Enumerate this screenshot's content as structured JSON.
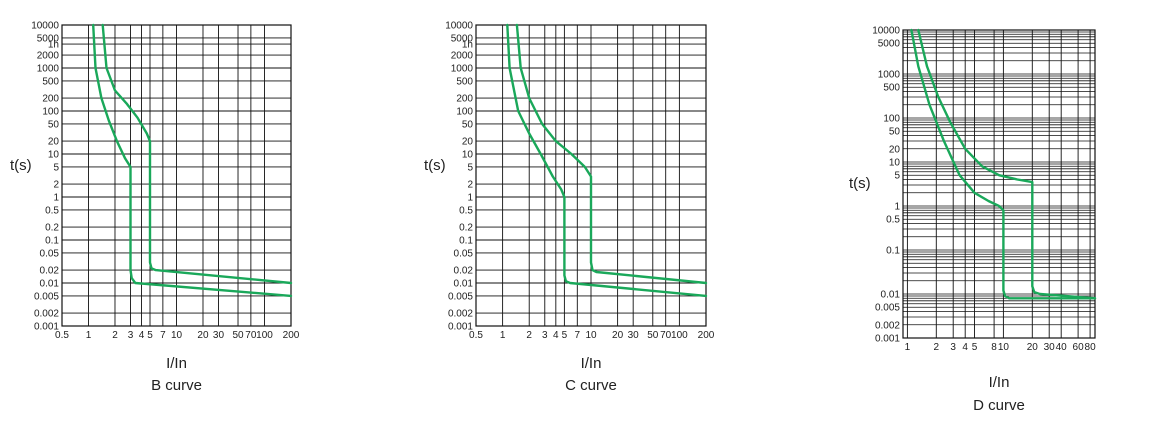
{
  "curve_color": "#1aa85a",
  "chart_data": [
    {
      "type": "line",
      "title": "B curve",
      "xlabel": "I/In",
      "ylabel": "t(s)",
      "x_scale": "log",
      "y_scale": "log",
      "xlim": [
        0.5,
        200
      ],
      "ylim": [
        0.001,
        10000
      ],
      "x_ticks": [
        0.5,
        1,
        2,
        3,
        4,
        5,
        7,
        10,
        20,
        30,
        50,
        70,
        100,
        200
      ],
      "x_tick_labels": [
        "0.5",
        "1",
        "2",
        "3",
        "4",
        "5",
        "7",
        "10",
        "20",
        "30",
        "50",
        "70",
        "100",
        "200"
      ],
      "y_ticks": [
        10000,
        5000,
        3600,
        2000,
        1000,
        500,
        200,
        100,
        50,
        20,
        10,
        5,
        2,
        1,
        0.5,
        0.2,
        0.1,
        0.05,
        0.02,
        0.01,
        0.005,
        0.002,
        0.001
      ],
      "y_tick_labels": [
        "10000",
        "5000",
        "1h",
        "2000",
        "1000",
        "500",
        "200",
        "100",
        "50",
        "20",
        "10",
        "5",
        "2",
        "1",
        "0.5",
        "0.2",
        "0.1",
        "0.05",
        "0.02",
        "0.01",
        "0.005",
        "0.002",
        "0.001"
      ],
      "grid": true,
      "series": [
        {
          "x": [
            1.13,
            1.2,
            1.4,
            1.7,
            2.1,
            2.6,
            3.0,
            3.0,
            3.1,
            3.4,
            200
          ],
          "y": [
            10000,
            1000,
            200,
            60,
            20,
            8,
            5,
            0.02,
            0.013,
            0.01,
            0.005
          ]
        },
        {
          "x": [
            1.45,
            1.6,
            2.0,
            2.7,
            3.6,
            4.6,
            5.0,
            5.0,
            5.2,
            5.8,
            200
          ],
          "y": [
            10000,
            1000,
            300,
            150,
            70,
            30,
            20,
            0.03,
            0.022,
            0.02,
            0.01
          ]
        }
      ]
    },
    {
      "type": "line",
      "title": "C curve",
      "xlabel": "I/In",
      "ylabel": "t(s)",
      "x_scale": "log",
      "y_scale": "log",
      "xlim": [
        0.5,
        200
      ],
      "ylim": [
        0.001,
        10000
      ],
      "x_ticks": [
        0.5,
        1,
        2,
        3,
        4,
        5,
        7,
        10,
        20,
        30,
        50,
        70,
        100,
        200
      ],
      "x_tick_labels": [
        "0.5",
        "1",
        "2",
        "3",
        "4",
        "5",
        "7",
        "10",
        "20",
        "30",
        "50",
        "70",
        "100",
        "200"
      ],
      "y_ticks": [
        10000,
        5000,
        3600,
        2000,
        1000,
        500,
        200,
        100,
        50,
        20,
        10,
        5,
        2,
        1,
        0.5,
        0.2,
        0.1,
        0.05,
        0.02,
        0.01,
        0.005,
        0.002,
        0.001
      ],
      "y_tick_labels": [
        "10000",
        "5000",
        "1h",
        "2000",
        "1000",
        "500",
        "200",
        "100",
        "50",
        "20",
        "10",
        "5",
        "2",
        "1",
        "0.5",
        "0.2",
        "0.1",
        "0.05",
        "0.02",
        "0.01",
        "0.005",
        "0.002",
        "0.001"
      ],
      "grid": true,
      "series": [
        {
          "x": [
            1.13,
            1.2,
            1.5,
            2.0,
            2.7,
            3.7,
            4.6,
            5.0,
            5.0,
            5.2,
            5.8,
            200
          ],
          "y": [
            10000,
            1000,
            100,
            30,
            10,
            3,
            1.5,
            1,
            0.015,
            0.011,
            0.01,
            0.005
          ]
        },
        {
          "x": [
            1.45,
            1.6,
            2.0,
            2.8,
            4.0,
            6.0,
            8.5,
            10.0,
            10.0,
            10.4,
            11.5,
            200
          ],
          "y": [
            10000,
            1000,
            200,
            50,
            20,
            10,
            5,
            3,
            0.03,
            0.02,
            0.018,
            0.01
          ]
        }
      ]
    },
    {
      "type": "line",
      "title": "D curve",
      "xlabel": "I/In",
      "ylabel": "t(s)",
      "x_scale": "log",
      "y_scale": "log",
      "xlim": [
        0.9,
        90
      ],
      "ylim": [
        0.001,
        10000
      ],
      "x_ticks": [
        1,
        2,
        3,
        4,
        5,
        8,
        10,
        20,
        30,
        40,
        60,
        80
      ],
      "x_tick_labels": [
        "1",
        "2",
        "3",
        "4",
        "5",
        "8",
        "10",
        "20",
        "30",
        "40",
        "60",
        "80"
      ],
      "y_ticks": [
        10000,
        5000,
        1000,
        500,
        100,
        50,
        20,
        10,
        5,
        1,
        0.5,
        0.1,
        0.01,
        0.005,
        0.002,
        0.001
      ],
      "y_tick_labels": [
        "10000",
        "5000",
        "1000",
        "500",
        "100",
        "50",
        "20",
        "10",
        "5",
        "1",
        "0.5",
        "0.1",
        "0.01",
        "0.005",
        "0.002",
        "0.001"
      ],
      "grid": true,
      "series": [
        {
          "x": [
            1.1,
            1.3,
            1.7,
            2.4,
            3.5,
            5.0,
            7.0,
            9.0,
            10.0,
            10.0,
            10.4,
            11.5,
            90
          ],
          "y": [
            10000,
            1500,
            200,
            30,
            5,
            2,
            1.3,
            1,
            0.8,
            0.012,
            0.009,
            0.008,
            0.008
          ]
        },
        {
          "x": [
            1.3,
            1.6,
            2.1,
            2.8,
            4.0,
            6.0,
            9.0,
            14.0,
            20.0,
            20.0,
            21.0,
            24.0,
            90
          ],
          "y": [
            10000,
            1500,
            300,
            80,
            20,
            8,
            5,
            4,
            3.5,
            0.015,
            0.011,
            0.01,
            0.008
          ]
        }
      ]
    }
  ]
}
